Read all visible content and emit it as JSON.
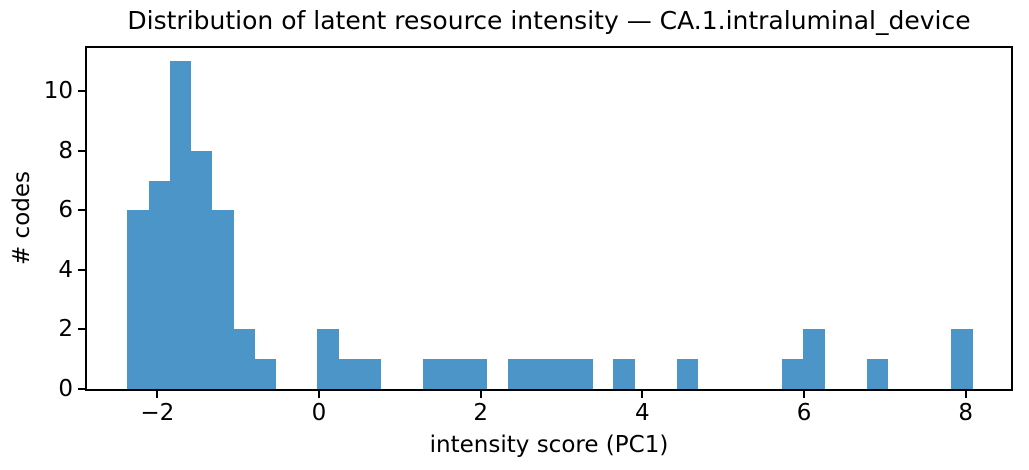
{
  "figure": {
    "title": "Distribution of latent resource intensity — CA.1.intraluminal_device"
  },
  "chart_data": {
    "type": "bar",
    "subtype": "histogram",
    "title": "Distribution of latent resource intensity — CA.1.intraluminal_device",
    "xlabel": "intensity score (PC1)",
    "ylabel": "# codes",
    "bin_start": -2.37,
    "bin_width": 0.26125,
    "counts": [
      6,
      7,
      11,
      8,
      6,
      2,
      1,
      0,
      0,
      2,
      1,
      1,
      0,
      0,
      1,
      1,
      1,
      0,
      1,
      1,
      1,
      1,
      0,
      1,
      0,
      0,
      1,
      0,
      0,
      0,
      0,
      1,
      2,
      0,
      0,
      1,
      0,
      0,
      0,
      2
    ],
    "xlim": [
      -2.87,
      8.56
    ],
    "ylim": [
      0,
      11.45
    ],
    "xticks": {
      "values": [
        -2,
        0,
        2,
        4,
        6,
        8
      ],
      "labels": [
        "−2",
        "0",
        "2",
        "4",
        "6",
        "8"
      ]
    },
    "yticks": {
      "values": [
        0,
        2,
        4,
        6,
        8,
        10
      ],
      "labels": [
        "0",
        "2",
        "4",
        "6",
        "8",
        "10"
      ]
    },
    "grid": false,
    "legend": "none",
    "bar_color": "#4c95c8",
    "spine_color": "#000000",
    "text_color": "#000000"
  }
}
